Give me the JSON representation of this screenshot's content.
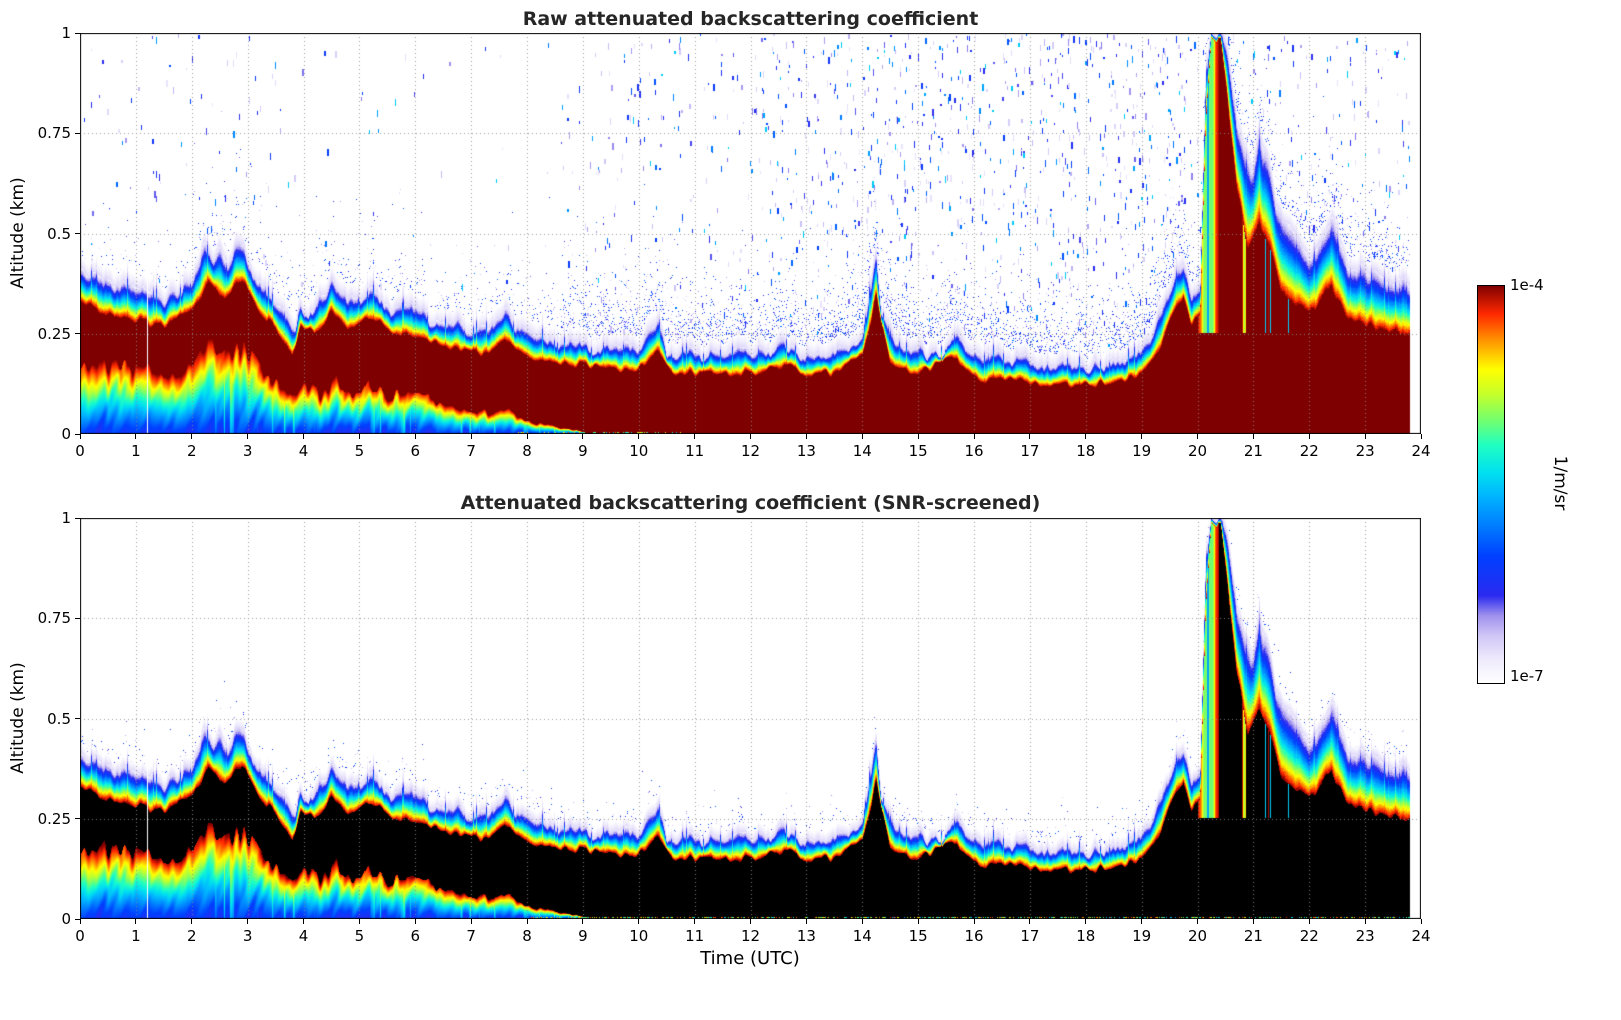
{
  "panels": [
    {
      "title": "Raw attenuated backscattering coefficient",
      "screened": false
    },
    {
      "title": "Attenuated backscattering coefficient (SNR-screened)",
      "screened": true
    }
  ],
  "axes": {
    "x_label": "Time (UTC)",
    "y_label": "Altitude (km)",
    "x_tick_labels": [
      "0",
      "1",
      "2",
      "3",
      "4",
      "5",
      "6",
      "7",
      "8",
      "9",
      "10",
      "11",
      "12",
      "13",
      "14",
      "15",
      "16",
      "17",
      "18",
      "19",
      "20",
      "21",
      "22",
      "23",
      "24"
    ],
    "x_tick_values": [
      0,
      1,
      2,
      3,
      4,
      5,
      6,
      7,
      8,
      9,
      10,
      11,
      12,
      13,
      14,
      15,
      16,
      17,
      18,
      19,
      20,
      21,
      22,
      23,
      24
    ],
    "y_tick_labels": [
      "0",
      "0.25",
      "0.5",
      "0.75",
      "1"
    ],
    "y_tick_values": [
      0,
      0.25,
      0.5,
      0.75,
      1
    ],
    "grid_x_hours": [
      1,
      2,
      3,
      4,
      5,
      6,
      7,
      8,
      9,
      10,
      11,
      12,
      13,
      14,
      15,
      16,
      17,
      18,
      19,
      20,
      21,
      22,
      23
    ],
    "grid_y_km": [
      0.25,
      0.5,
      0.75
    ]
  },
  "colorbar": {
    "max_label": "1e-4",
    "min_label": "1e-7",
    "unit_label": "1/m/sr"
  },
  "chart_data": {
    "type": "heatmap",
    "x_unit": "hours UTC",
    "x_range": [
      0,
      24
    ],
    "data_end_x": 23.8,
    "y_unit": "km",
    "y_range": [
      0,
      1
    ],
    "value_min": "1e-7",
    "value_max": "1e-4",
    "value_scale": "log10",
    "data_gap_hours": [
      1.21
    ],
    "plume_hours": [
      19.95,
      21.7
    ],
    "colormap_stops": [
      [
        0.0,
        "#ffffff"
      ],
      [
        0.06,
        "#eeeafc"
      ],
      [
        0.12,
        "#cfc6f6"
      ],
      [
        0.17,
        "#9f90ee"
      ],
      [
        0.22,
        "#2a2af0"
      ],
      [
        0.32,
        "#0040ff"
      ],
      [
        0.4,
        "#0080ff"
      ],
      [
        0.47,
        "#00b4ff"
      ],
      [
        0.53,
        "#00e0f0"
      ],
      [
        0.6,
        "#20ffc0"
      ],
      [
        0.66,
        "#70ff70"
      ],
      [
        0.73,
        "#c8ff28"
      ],
      [
        0.79,
        "#ffff00"
      ],
      [
        0.86,
        "#ff9800"
      ],
      [
        0.93,
        "#ff2800"
      ],
      [
        1.0,
        "#7f0000"
      ]
    ],
    "layer_top_km": [
      [
        0,
        0.41
      ],
      [
        0.3,
        0.39
      ],
      [
        0.6,
        0.37
      ],
      [
        0.9,
        0.36
      ],
      [
        1.2,
        0.35
      ],
      [
        1.5,
        0.34
      ],
      [
        1.8,
        0.36
      ],
      [
        2.0,
        0.39
      ],
      [
        2.2,
        0.47
      ],
      [
        2.35,
        0.44
      ],
      [
        2.5,
        0.46
      ],
      [
        2.65,
        0.43
      ],
      [
        2.8,
        0.48
      ],
      [
        2.95,
        0.46
      ],
      [
        3.1,
        0.4
      ],
      [
        3.3,
        0.36
      ],
      [
        3.5,
        0.34
      ],
      [
        3.7,
        0.31
      ],
      [
        3.85,
        0.26
      ],
      [
        3.95,
        0.33
      ],
      [
        4.1,
        0.3
      ],
      [
        4.3,
        0.34
      ],
      [
        4.5,
        0.38
      ],
      [
        4.7,
        0.36
      ],
      [
        4.9,
        0.33
      ],
      [
        5.1,
        0.35
      ],
      [
        5.25,
        0.37
      ],
      [
        5.4,
        0.33
      ],
      [
        5.6,
        0.3
      ],
      [
        5.8,
        0.32
      ],
      [
        6.0,
        0.33
      ],
      [
        6.2,
        0.3
      ],
      [
        6.4,
        0.28
      ],
      [
        6.6,
        0.29
      ],
      [
        6.8,
        0.27
      ],
      [
        7.0,
        0.26
      ],
      [
        7.2,
        0.27
      ],
      [
        7.4,
        0.26
      ],
      [
        7.6,
        0.31
      ],
      [
        7.8,
        0.27
      ],
      [
        8.0,
        0.25
      ],
      [
        8.3,
        0.23
      ],
      [
        8.6,
        0.23
      ],
      [
        9.0,
        0.22
      ],
      [
        9.5,
        0.22
      ],
      [
        10.0,
        0.21
      ],
      [
        10.35,
        0.27
      ],
      [
        10.5,
        0.21
      ],
      [
        11.0,
        0.2
      ],
      [
        11.5,
        0.2
      ],
      [
        12.0,
        0.21
      ],
      [
        12.3,
        0.2
      ],
      [
        12.6,
        0.23
      ],
      [
        12.9,
        0.2
      ],
      [
        13.3,
        0.2
      ],
      [
        13.7,
        0.21
      ],
      [
        14.0,
        0.26
      ],
      [
        14.15,
        0.35
      ],
      [
        14.25,
        0.46
      ],
      [
        14.35,
        0.3
      ],
      [
        14.6,
        0.23
      ],
      [
        15.0,
        0.21
      ],
      [
        15.4,
        0.2
      ],
      [
        15.7,
        0.26
      ],
      [
        15.9,
        0.2
      ],
      [
        16.3,
        0.19
      ],
      [
        16.7,
        0.19
      ],
      [
        17.0,
        0.18
      ],
      [
        17.5,
        0.18
      ],
      [
        18.0,
        0.17
      ],
      [
        18.5,
        0.18
      ],
      [
        18.8,
        0.2
      ],
      [
        19.0,
        0.22
      ],
      [
        19.2,
        0.26
      ],
      [
        19.4,
        0.33
      ],
      [
        19.6,
        0.4
      ],
      [
        19.75,
        0.42
      ],
      [
        19.9,
        0.36
      ],
      [
        20.05,
        0.38
      ],
      [
        20.15,
        0.9
      ],
      [
        20.25,
        1.0
      ],
      [
        20.45,
        1.0
      ],
      [
        20.55,
        0.95
      ],
      [
        20.7,
        0.8
      ],
      [
        20.85,
        0.72
      ],
      [
        21.0,
        0.66
      ],
      [
        21.1,
        0.75
      ],
      [
        21.25,
        0.7
      ],
      [
        21.4,
        0.58
      ],
      [
        21.6,
        0.53
      ],
      [
        21.8,
        0.48
      ],
      [
        22.0,
        0.45
      ],
      [
        22.2,
        0.47
      ],
      [
        22.4,
        0.54
      ],
      [
        22.55,
        0.48
      ],
      [
        22.7,
        0.43
      ],
      [
        23.0,
        0.41
      ],
      [
        23.3,
        0.39
      ],
      [
        23.6,
        0.38
      ],
      [
        23.8,
        0.37
      ]
    ],
    "saturated_top_km": [
      [
        0,
        0.33
      ],
      [
        0.5,
        0.3
      ],
      [
        1.0,
        0.28
      ],
      [
        1.5,
        0.27
      ],
      [
        2.0,
        0.3
      ],
      [
        2.3,
        0.37
      ],
      [
        2.6,
        0.34
      ],
      [
        2.9,
        0.38
      ],
      [
        3.2,
        0.31
      ],
      [
        3.5,
        0.26
      ],
      [
        3.8,
        0.2
      ],
      [
        3.95,
        0.26
      ],
      [
        4.2,
        0.25
      ],
      [
        4.5,
        0.3
      ],
      [
        4.8,
        0.26
      ],
      [
        5.1,
        0.28
      ],
      [
        5.3,
        0.29
      ],
      [
        5.6,
        0.24
      ],
      [
        5.9,
        0.25
      ],
      [
        6.2,
        0.24
      ],
      [
        6.5,
        0.22
      ],
      [
        6.8,
        0.21
      ],
      [
        7.0,
        0.2
      ],
      [
        7.3,
        0.2
      ],
      [
        7.6,
        0.24
      ],
      [
        7.9,
        0.2
      ],
      [
        8.2,
        0.18
      ],
      [
        8.6,
        0.17
      ],
      [
        9.0,
        0.17
      ],
      [
        9.5,
        0.16
      ],
      [
        10.0,
        0.16
      ],
      [
        10.35,
        0.2
      ],
      [
        10.6,
        0.15
      ],
      [
        11.0,
        0.15
      ],
      [
        11.5,
        0.15
      ],
      [
        12.0,
        0.15
      ],
      [
        12.6,
        0.17
      ],
      [
        13.0,
        0.15
      ],
      [
        13.5,
        0.15
      ],
      [
        14.0,
        0.19
      ],
      [
        14.25,
        0.34
      ],
      [
        14.5,
        0.17
      ],
      [
        15.0,
        0.15
      ],
      [
        15.7,
        0.19
      ],
      [
        16.0,
        0.14
      ],
      [
        16.5,
        0.13
      ],
      [
        17.0,
        0.13
      ],
      [
        17.5,
        0.12
      ],
      [
        18.0,
        0.12
      ],
      [
        18.5,
        0.13
      ],
      [
        19.0,
        0.15
      ],
      [
        19.3,
        0.21
      ],
      [
        19.6,
        0.31
      ],
      [
        19.75,
        0.34
      ],
      [
        19.9,
        0.27
      ],
      [
        20.05,
        0.29
      ],
      [
        20.15,
        0.78
      ],
      [
        20.25,
        1.0
      ],
      [
        20.4,
        1.0
      ],
      [
        20.55,
        0.82
      ],
      [
        20.7,
        0.62
      ],
      [
        20.9,
        0.46
      ],
      [
        21.1,
        0.52
      ],
      [
        21.3,
        0.46
      ],
      [
        21.5,
        0.36
      ],
      [
        21.8,
        0.32
      ],
      [
        22.0,
        0.3
      ],
      [
        22.4,
        0.37
      ],
      [
        22.7,
        0.28
      ],
      [
        23.0,
        0.27
      ],
      [
        23.4,
        0.26
      ],
      [
        23.8,
        0.25
      ]
    ],
    "saturated_bottom_km": [
      [
        0,
        0.18
      ],
      [
        0.5,
        0.17
      ],
      [
        1.0,
        0.16
      ],
      [
        1.5,
        0.15
      ],
      [
        2.0,
        0.17
      ],
      [
        2.3,
        0.22
      ],
      [
        2.6,
        0.2
      ],
      [
        2.9,
        0.22
      ],
      [
        3.2,
        0.16
      ],
      [
        3.5,
        0.12
      ],
      [
        3.8,
        0.1
      ],
      [
        4.0,
        0.12
      ],
      [
        4.3,
        0.1
      ],
      [
        4.6,
        0.13
      ],
      [
        4.9,
        0.1
      ],
      [
        5.2,
        0.12
      ],
      [
        5.5,
        0.09
      ],
      [
        5.8,
        0.1
      ],
      [
        6.1,
        0.09
      ],
      [
        6.4,
        0.08
      ],
      [
        6.7,
        0.07
      ],
      [
        7.0,
        0.06
      ],
      [
        7.4,
        0.05
      ],
      [
        7.7,
        0.06
      ],
      [
        8.0,
        0.03
      ],
      [
        8.4,
        0.02
      ],
      [
        8.8,
        0.01
      ],
      [
        9.2,
        0.0
      ],
      [
        23.8,
        0.0
      ]
    ]
  }
}
